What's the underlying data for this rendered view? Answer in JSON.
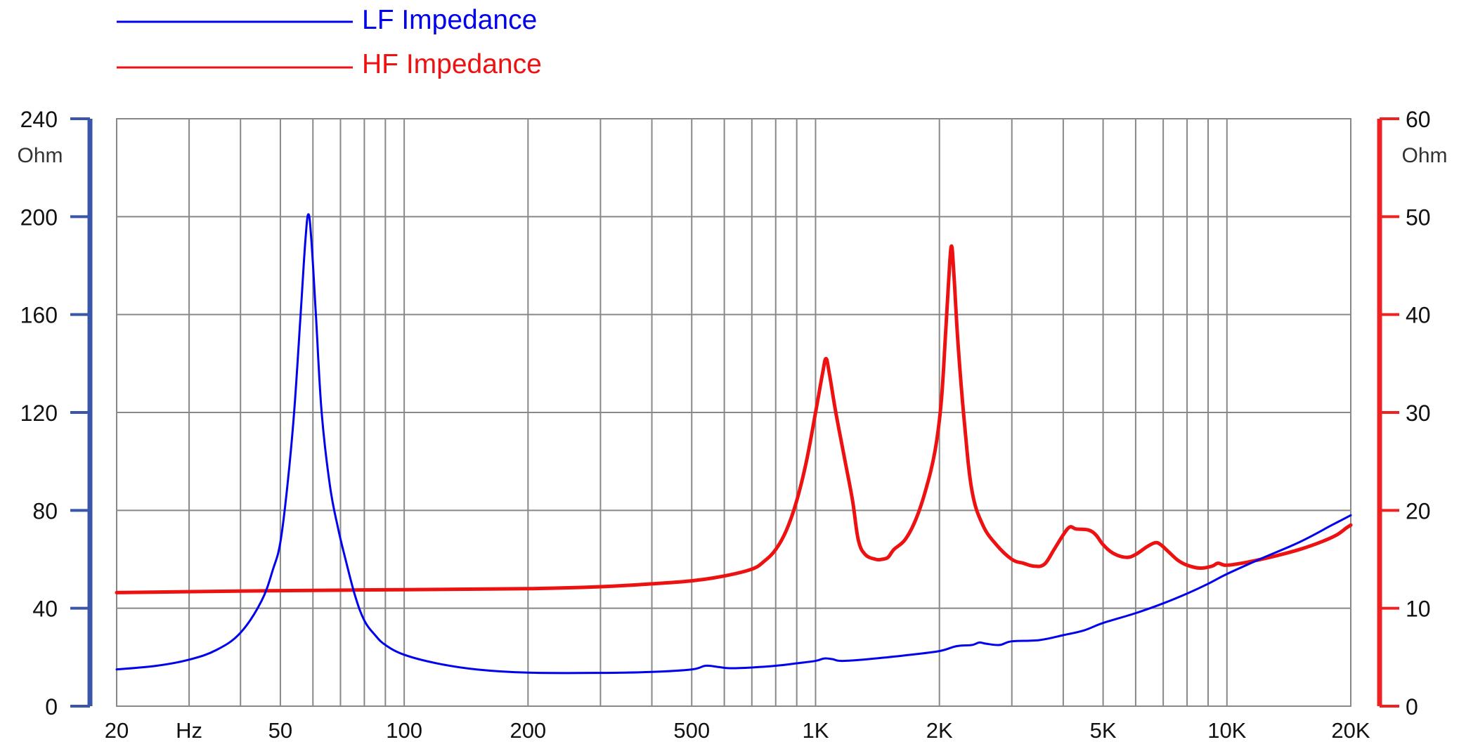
{
  "chart_data": {
    "type": "line",
    "x_scale": "log",
    "xlim": [
      20,
      20000
    ],
    "grid": true,
    "legend_placement": "top-left",
    "x_ticks": [
      {
        "value": 20,
        "label": "20"
      },
      {
        "value": 30,
        "label": "Hz"
      },
      {
        "value": 50,
        "label": "50"
      },
      {
        "value": 100,
        "label": "100"
      },
      {
        "value": 200,
        "label": "200"
      },
      {
        "value": 500,
        "label": "500"
      },
      {
        "value": 1000,
        "label": "1K"
      },
      {
        "value": 2000,
        "label": "2K"
      },
      {
        "value": 5000,
        "label": "5K"
      },
      {
        "value": 10000,
        "label": "10K"
      },
      {
        "value": 20000,
        "label": "20K"
      }
    ],
    "x_grid_values": [
      20,
      30,
      40,
      50,
      60,
      70,
      80,
      90,
      100,
      200,
      300,
      400,
      500,
      600,
      700,
      800,
      900,
      1000,
      2000,
      3000,
      4000,
      5000,
      6000,
      7000,
      8000,
      9000,
      10000,
      20000
    ],
    "y_left": {
      "unit": "Ohm",
      "range": [
        0,
        240
      ],
      "ticks": [
        0,
        40,
        80,
        120,
        160,
        200,
        240
      ],
      "color": "#3a56a8"
    },
    "y_right": {
      "unit": "Ohm",
      "range": [
        0,
        60
      ],
      "ticks": [
        0,
        10,
        20,
        30,
        40,
        50,
        60
      ],
      "color": "#ee2222"
    },
    "series": [
      {
        "name": "LF Impedance",
        "axis": "left",
        "color": "#0000ee",
        "points": [
          [
            20,
            15
          ],
          [
            25,
            16.5
          ],
          [
            30,
            19
          ],
          [
            35,
            23
          ],
          [
            40,
            30
          ],
          [
            45,
            43
          ],
          [
            48,
            56
          ],
          [
            50,
            67
          ],
          [
            52,
            90
          ],
          [
            54,
            120
          ],
          [
            56,
            160
          ],
          [
            57.5,
            190
          ],
          [
            58.5,
            201
          ],
          [
            59.5,
            190
          ],
          [
            61,
            160
          ],
          [
            63,
            120
          ],
          [
            66,
            90
          ],
          [
            69,
            73
          ],
          [
            72,
            60
          ],
          [
            76,
            45
          ],
          [
            80,
            35
          ],
          [
            85,
            29
          ],
          [
            90,
            25
          ],
          [
            100,
            21
          ],
          [
            120,
            17.5
          ],
          [
            150,
            15
          ],
          [
            200,
            13.7
          ],
          [
            300,
            13.6
          ],
          [
            400,
            14
          ],
          [
            500,
            15
          ],
          [
            540,
            16.5
          ],
          [
            580,
            16
          ],
          [
            620,
            15.5
          ],
          [
            700,
            15.8
          ],
          [
            800,
            16.5
          ],
          [
            900,
            17.5
          ],
          [
            1000,
            18.5
          ],
          [
            1050,
            19.5
          ],
          [
            1100,
            19.2
          ],
          [
            1150,
            18.5
          ],
          [
            1300,
            19
          ],
          [
            1500,
            20
          ],
          [
            1700,
            21
          ],
          [
            2000,
            22.5
          ],
          [
            2200,
            24.5
          ],
          [
            2400,
            25
          ],
          [
            2500,
            26
          ],
          [
            2600,
            25.5
          ],
          [
            2800,
            25
          ],
          [
            3000,
            26.5
          ],
          [
            3500,
            27
          ],
          [
            4000,
            29
          ],
          [
            4500,
            31
          ],
          [
            5000,
            34
          ],
          [
            6000,
            38
          ],
          [
            7000,
            42
          ],
          [
            8000,
            46
          ],
          [
            9000,
            50
          ],
          [
            10000,
            54
          ],
          [
            12000,
            60
          ],
          [
            15000,
            67
          ],
          [
            18000,
            74
          ],
          [
            20000,
            78
          ]
        ]
      },
      {
        "name": "HF Impedance",
        "axis": "right",
        "color": "#ee1111",
        "points": [
          [
            20,
            11.6
          ],
          [
            50,
            11.8
          ],
          [
            100,
            11.9
          ],
          [
            200,
            12
          ],
          [
            300,
            12.2
          ],
          [
            400,
            12.5
          ],
          [
            500,
            12.8
          ],
          [
            600,
            13.3
          ],
          [
            700,
            14
          ],
          [
            750,
            14.8
          ],
          [
            800,
            16
          ],
          [
            850,
            18
          ],
          [
            900,
            21
          ],
          [
            950,
            25
          ],
          [
            1000,
            30
          ],
          [
            1040,
            34
          ],
          [
            1060,
            35.5
          ],
          [
            1080,
            34
          ],
          [
            1120,
            30
          ],
          [
            1180,
            25
          ],
          [
            1230,
            21
          ],
          [
            1270,
            17
          ],
          [
            1320,
            15.5
          ],
          [
            1400,
            15
          ],
          [
            1450,
            15
          ],
          [
            1500,
            15.2
          ],
          [
            1550,
            16
          ],
          [
            1650,
            17
          ],
          [
            1750,
            19
          ],
          [
            1850,
            22
          ],
          [
            1950,
            26
          ],
          [
            2020,
            31
          ],
          [
            2070,
            38
          ],
          [
            2110,
            44
          ],
          [
            2140,
            47
          ],
          [
            2170,
            44
          ],
          [
            2220,
            37
          ],
          [
            2300,
            29
          ],
          [
            2400,
            22
          ],
          [
            2550,
            18.5
          ],
          [
            2750,
            16.5
          ],
          [
            3000,
            15
          ],
          [
            3200,
            14.6
          ],
          [
            3400,
            14.3
          ],
          [
            3600,
            14.5
          ],
          [
            3800,
            16
          ],
          [
            4000,
            17.5
          ],
          [
            4150,
            18.3
          ],
          [
            4300,
            18.1
          ],
          [
            4600,
            18
          ],
          [
            4800,
            17.5
          ],
          [
            5000,
            16.5
          ],
          [
            5300,
            15.6
          ],
          [
            5700,
            15.2
          ],
          [
            6000,
            15.5
          ],
          [
            6400,
            16.3
          ],
          [
            6700,
            16.7
          ],
          [
            6900,
            16.5
          ],
          [
            7200,
            15.8
          ],
          [
            7600,
            14.9
          ],
          [
            8000,
            14.4
          ],
          [
            8600,
            14.1
          ],
          [
            9200,
            14.3
          ],
          [
            9500,
            14.6
          ],
          [
            9900,
            14.4
          ],
          [
            10500,
            14.5
          ],
          [
            11500,
            14.8
          ],
          [
            13000,
            15.3
          ],
          [
            15000,
            16
          ],
          [
            17000,
            16.8
          ],
          [
            18500,
            17.5
          ],
          [
            19500,
            18.2
          ],
          [
            20000,
            18.5
          ]
        ]
      }
    ]
  }
}
